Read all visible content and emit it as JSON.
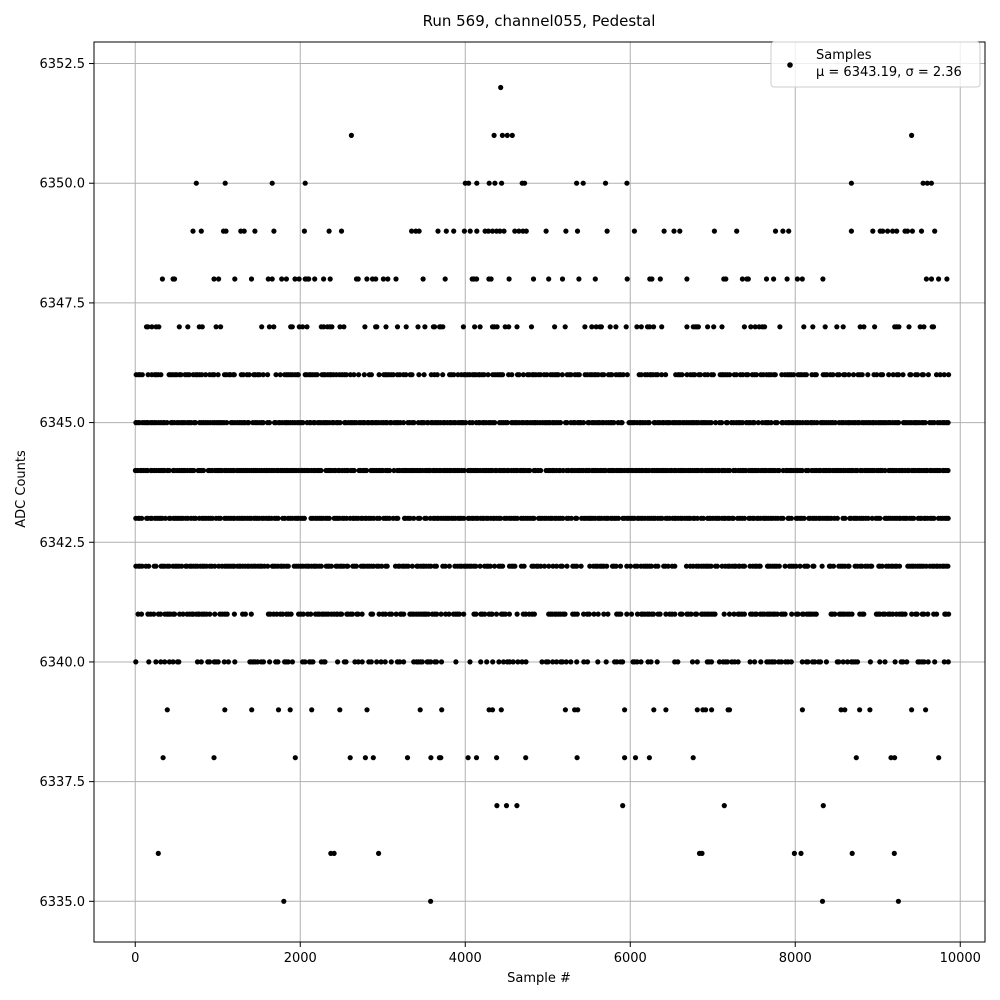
{
  "chart_data": {
    "type": "scatter",
    "title": "Run 569, channel055, Pedestal",
    "xlabel": "Sample #",
    "ylabel": "ADC Counts",
    "xlim": [
      -500,
      10300
    ],
    "ylim": [
      6334.15,
      6352.95
    ],
    "xticks": [
      0,
      2000,
      4000,
      6000,
      8000,
      10000
    ],
    "yticks": [
      6335.0,
      6337.5,
      6340.0,
      6342.5,
      6345.0,
      6347.5,
      6350.0,
      6352.5
    ],
    "xtick_labels": [
      "0",
      "2000",
      "4000",
      "6000",
      "8000",
      "10000"
    ],
    "ytick_labels": [
      "6335.0",
      "6337.5",
      "6340.0",
      "6342.5",
      "6345.0",
      "6347.5",
      "6350.0",
      "6352.5"
    ],
    "grid": true,
    "legend": {
      "placement": "top-right",
      "label": "Samples",
      "stats": "μ = 6343.19, σ = 2.36"
    },
    "marker_color": "#000000",
    "x_range": [
      0,
      9850
    ],
    "series": [
      {
        "name": "Samples",
        "sparse_points": [
          [
            4430,
            6352
          ],
          [
            2620,
            6351
          ],
          [
            4350,
            6351
          ],
          [
            4450,
            6351
          ],
          [
            4510,
            6351
          ],
          [
            4570,
            6351
          ],
          [
            9410,
            6351
          ],
          [
            740,
            6350
          ],
          [
            1090,
            6350
          ],
          [
            1660,
            6350
          ],
          [
            2060,
            6350
          ],
          [
            4000,
            6350
          ],
          [
            4040,
            6350
          ],
          [
            4140,
            6350
          ],
          [
            4290,
            6350
          ],
          [
            4360,
            6350
          ],
          [
            4440,
            6350
          ],
          [
            4690,
            6350
          ],
          [
            4720,
            6350
          ],
          [
            5350,
            6350
          ],
          [
            5430,
            6350
          ],
          [
            5700,
            6350
          ],
          [
            5960,
            6350
          ],
          [
            8680,
            6350
          ],
          [
            9550,
            6350
          ],
          [
            9600,
            6350
          ],
          [
            9650,
            6350
          ],
          [
            700,
            6349
          ],
          [
            800,
            6349
          ],
          [
            1070,
            6349
          ],
          [
            1100,
            6349
          ],
          [
            1280,
            6349
          ],
          [
            1320,
            6349
          ],
          [
            1450,
            6349
          ],
          [
            1680,
            6349
          ],
          [
            2050,
            6349
          ],
          [
            2350,
            6349
          ],
          [
            2500,
            6349
          ],
          [
            3350,
            6349
          ],
          [
            3400,
            6349
          ],
          [
            3440,
            6349
          ],
          [
            3670,
            6349
          ],
          [
            3770,
            6349
          ],
          [
            3860,
            6349
          ],
          [
            3990,
            6349
          ],
          [
            4060,
            6349
          ],
          [
            4140,
            6349
          ],
          [
            4240,
            6349
          ],
          [
            4280,
            6349
          ],
          [
            4330,
            6349
          ],
          [
            4380,
            6349
          ],
          [
            4420,
            6349
          ],
          [
            4470,
            6349
          ],
          [
            4600,
            6349
          ],
          [
            4650,
            6349
          ],
          [
            4700,
            6349
          ],
          [
            4740,
            6349
          ],
          [
            4980,
            6349
          ],
          [
            5220,
            6349
          ],
          [
            5360,
            6349
          ],
          [
            5720,
            6349
          ],
          [
            6050,
            6349
          ],
          [
            6410,
            6349
          ],
          [
            6530,
            6349
          ],
          [
            6600,
            6349
          ],
          [
            7020,
            6349
          ],
          [
            7290,
            6349
          ],
          [
            7760,
            6349
          ],
          [
            7850,
            6349
          ],
          [
            7920,
            6349
          ],
          [
            8680,
            6349
          ],
          [
            8940,
            6349
          ],
          [
            9030,
            6349
          ],
          [
            9060,
            6349
          ],
          [
            9120,
            6349
          ],
          [
            9180,
            6349
          ],
          [
            9230,
            6349
          ],
          [
            9330,
            6349
          ],
          [
            9360,
            6349
          ],
          [
            9420,
            6349
          ],
          [
            9530,
            6349
          ],
          [
            9690,
            6349
          ],
          [
            280,
            6336
          ],
          [
            2370,
            6336
          ],
          [
            2410,
            6336
          ],
          [
            2950,
            6336
          ],
          [
            6840,
            6336
          ],
          [
            6870,
            6336
          ],
          [
            7990,
            6336
          ],
          [
            8070,
            6336
          ],
          [
            8690,
            6336
          ],
          [
            9200,
            6336
          ],
          [
            1800,
            6335
          ],
          [
            3580,
            6335
          ],
          [
            8330,
            6335
          ],
          [
            9250,
            6335
          ]
        ],
        "dense_levels": [
          {
            "y": 6348,
            "density": 0.12
          },
          {
            "y": 6347,
            "density": 0.28
          },
          {
            "y": 6346,
            "density": 0.65
          },
          {
            "y": 6345,
            "density": 0.9
          },
          {
            "y": 6344,
            "density": 0.95
          },
          {
            "y": 6343,
            "density": 0.9
          },
          {
            "y": 6342,
            "density": 0.75
          },
          {
            "y": 6341,
            "density": 0.6
          },
          {
            "y": 6340,
            "density": 0.4
          },
          {
            "y": 6339,
            "density": 0.12
          },
          {
            "y": 6338,
            "density": 0.05
          },
          {
            "y": 6337,
            "density": 0.015
          }
        ]
      }
    ]
  }
}
